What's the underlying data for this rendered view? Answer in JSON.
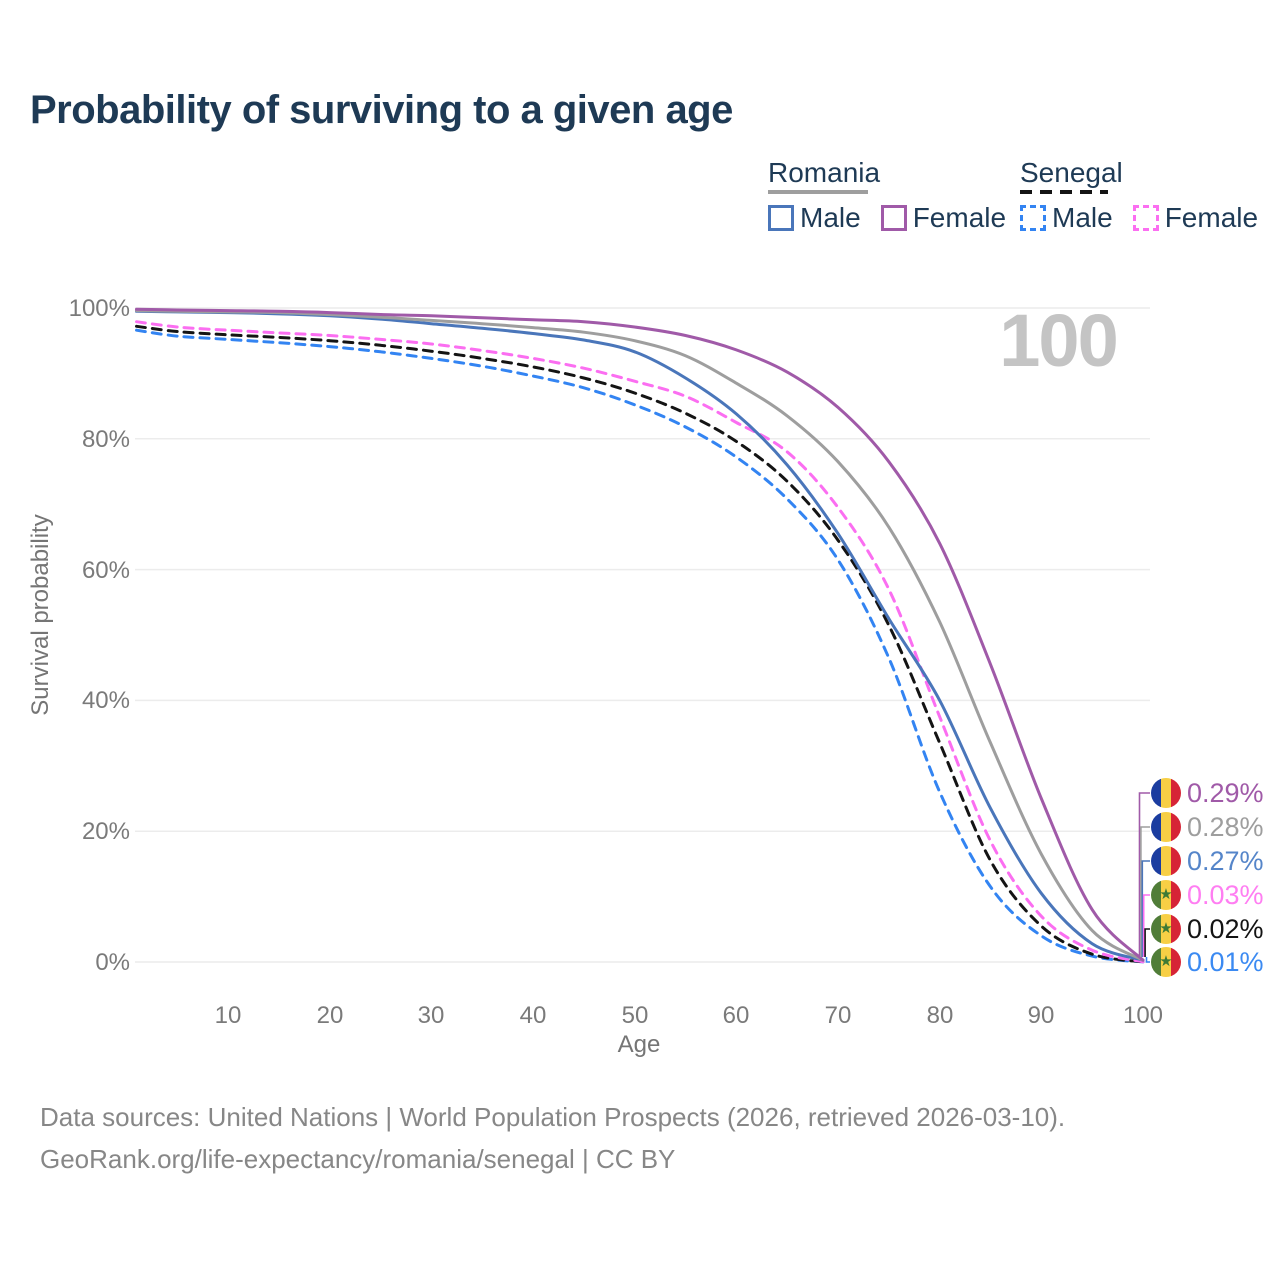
{
  "title": "Probability of surviving to a given age",
  "watermark": "100",
  "legend": {
    "groups": [
      {
        "label": "Romania",
        "style": "solid",
        "underline_color": "#9e9e9e",
        "items": [
          {
            "label": "Male",
            "color": "#4a76ba"
          },
          {
            "label": "Female",
            "color": "#a05aa8"
          }
        ]
      },
      {
        "label": "Senegal",
        "style": "dashed",
        "underline_color": "#141414",
        "items": [
          {
            "label": "Male",
            "color": "#3384f2"
          },
          {
            "label": "Female",
            "color": "#fb6ef1"
          }
        ]
      }
    ]
  },
  "axes": {
    "y_label": "Survival probability",
    "x_label": "Age",
    "y_ticks": [
      "100%",
      "80%",
      "60%",
      "40%",
      "20%",
      "0%"
    ],
    "x_ticks": [
      "10",
      "20",
      "30",
      "40",
      "50",
      "60",
      "70",
      "80",
      "90",
      "100"
    ]
  },
  "flags": {
    "romania": [
      "#1b3da0",
      "#f7cf45",
      "#d62436"
    ],
    "senegal": [
      "#507d38",
      "#f7cf45",
      "#d62436"
    ],
    "senegal_star": "#3e7a35"
  },
  "end_labels": [
    {
      "flag": "romania",
      "value": "0.29%",
      "color": "#a05aa8",
      "line_color": "#a05aa8"
    },
    {
      "flag": "romania",
      "value": "0.28%",
      "color": "#9e9e9e",
      "line_color": "#9e9e9e"
    },
    {
      "flag": "romania",
      "value": "0.27%",
      "color": "#5585c9",
      "line_color": "#4a76ba"
    },
    {
      "flag": "senegal",
      "value": "0.03%",
      "color": "#ff7ef2",
      "line_color": "#fb6ef1"
    },
    {
      "flag": "senegal",
      "value": "0.02%",
      "color": "#141414",
      "line_color": "#141414"
    },
    {
      "flag": "senegal",
      "value": "0.01%",
      "color": "#3b8af2",
      "line_color": "#3384f2"
    }
  ],
  "footer": {
    "line1": "Data sources: United Nations | World Population Prospects (2026, retrieved 2026-03-10).",
    "line2": "GeoRank.org/life-expectancy/romania/senegal | CC BY"
  },
  "chart_data": {
    "type": "line",
    "title": "Probability of surviving to a given age",
    "xlabel": "Age",
    "ylabel": "Survival probability",
    "unit": "%",
    "xlim": [
      0,
      100
    ],
    "ylim": [
      0,
      100
    ],
    "grid": true,
    "legend_position": "top-right",
    "x": [
      1,
      5,
      10,
      15,
      20,
      25,
      30,
      35,
      40,
      45,
      50,
      55,
      60,
      65,
      70,
      75,
      80,
      85,
      90,
      95,
      100
    ],
    "series": [
      {
        "name": "Romania Female",
        "color": "#a05aa8",
        "dash": "solid",
        "values": [
          99.8,
          99.7,
          99.6,
          99.5,
          99.3,
          99.0,
          98.8,
          98.5,
          98.2,
          97.9,
          97.1,
          95.8,
          93.6,
          90.2,
          84.8,
          76.5,
          64.0,
          45.5,
          25.0,
          8.0,
          0.29
        ]
      },
      {
        "name": "Romania Both sexes",
        "color": "#9e9e9e",
        "dash": "solid",
        "values": [
          99.6,
          99.5,
          99.4,
          99.3,
          99.0,
          98.6,
          98.1,
          97.6,
          97.0,
          96.3,
          95.0,
          92.7,
          88.5,
          83.5,
          76.5,
          66.5,
          52.0,
          33.5,
          16.5,
          4.8,
          0.28
        ]
      },
      {
        "name": "Romania Male",
        "color": "#4a76ba",
        "dash": "solid",
        "values": [
          99.5,
          99.4,
          99.3,
          99.1,
          98.8,
          98.3,
          97.6,
          96.9,
          96.1,
          95.1,
          93.3,
          89.3,
          83.8,
          76.0,
          65.5,
          52.5,
          40.0,
          23.5,
          10.5,
          2.8,
          0.27
        ]
      },
      {
        "name": "Senegal Female",
        "color": "#fb6ef1",
        "dash": "dashed",
        "values": [
          97.9,
          97.1,
          96.6,
          96.2,
          95.8,
          95.2,
          94.5,
          93.5,
          92.3,
          90.8,
          88.8,
          86.5,
          82.5,
          78.0,
          69.5,
          57.0,
          37.5,
          18.5,
          7.0,
          1.8,
          0.03
        ]
      },
      {
        "name": "Senegal Both sexes",
        "color": "#141414",
        "dash": "dashed",
        "values": [
          97.2,
          96.4,
          95.9,
          95.5,
          95.0,
          94.3,
          93.4,
          92.3,
          91.0,
          89.3,
          87.0,
          83.9,
          79.6,
          73.5,
          64.5,
          51.5,
          33.5,
          15.5,
          5.5,
          1.2,
          0.02
        ]
      },
      {
        "name": "Senegal Male",
        "color": "#3384f2",
        "dash": "dashed",
        "values": [
          96.6,
          95.7,
          95.2,
          94.7,
          94.1,
          93.3,
          92.3,
          91.1,
          89.6,
          87.8,
          85.2,
          81.8,
          77.2,
          70.8,
          61.5,
          46.5,
          26.0,
          11.5,
          4.0,
          0.9,
          0.01
        ]
      }
    ],
    "end_values_pct": [
      0.29,
      0.28,
      0.27,
      0.03,
      0.02,
      0.01
    ]
  }
}
